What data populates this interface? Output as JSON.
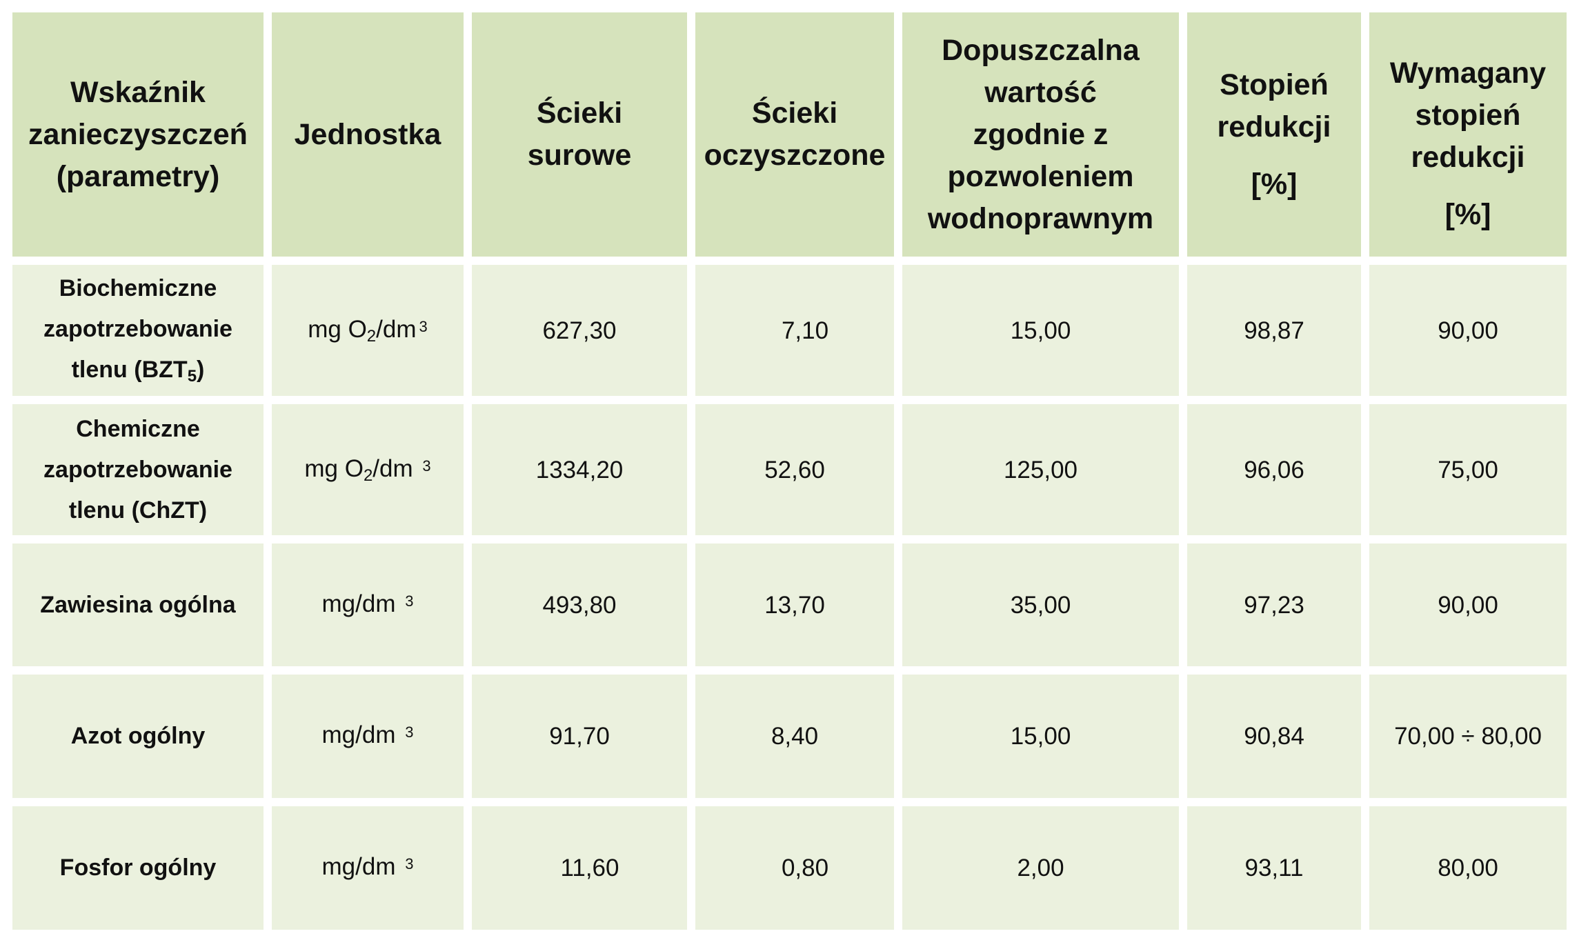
{
  "headers": {
    "parameter": [
      "Wskaźnik",
      "zanieczyszczeń",
      "(parametry)"
    ],
    "unit": [
      "Jednostka"
    ],
    "raw": [
      "Ścieki",
      "surowe"
    ],
    "treated": [
      "Ścieki",
      "oczyszczone"
    ],
    "permitted": [
      "Dopuszczalna",
      "wartość",
      "zgodnie z",
      "pozwoleniem",
      "wodnoprawnym"
    ],
    "reduction": [
      "Stopień",
      "redukcji"
    ],
    "reduction_pct": "[%]",
    "required": [
      "Wymagany",
      "stopień",
      "redukcji"
    ],
    "required_pct": "[%]"
  },
  "rows": [
    {
      "parameter_lines": [
        "Biochemiczne",
        "zapotrzebowanie",
        "tlenu (BZT"
      ],
      "parameter_sub": "5",
      "parameter_tail": ")",
      "unit_pre": "mg O",
      "unit_sub": "2",
      "unit_post": "/dm",
      "unit_sup": "3",
      "raw": "627,30",
      "treated": "7,10",
      "permitted": "15,00",
      "reduction": "98,87",
      "required": "90,00"
    },
    {
      "parameter_lines": [
        "Chemiczne",
        "zapotrzebowanie",
        "tlenu (ChZT)"
      ],
      "unit_pre": "mg O",
      "unit_sub": "2",
      "unit_post": "/dm ",
      "unit_sup": "3",
      "raw": "1334,20",
      "treated": "52,60",
      "permitted": "125,00",
      "reduction": "96,06",
      "required": "75,00"
    },
    {
      "parameter_lines": [
        "Zawiesina ogólna"
      ],
      "unit_post": "mg/dm ",
      "unit_sup": "3",
      "raw": "493,80",
      "treated": "13,70",
      "permitted": "35,00",
      "reduction": "97,23",
      "required": "90,00"
    },
    {
      "parameter_lines": [
        "Azot ogólny"
      ],
      "unit_post": "mg/dm ",
      "unit_sup": "3",
      "raw": "91,70",
      "treated": "8,40",
      "permitted": "15,00",
      "reduction": "90,84",
      "required": "70,00 ÷ 80,00"
    },
    {
      "parameter_lines": [
        "Fosfor ogólny"
      ],
      "unit_post": "mg/dm ",
      "unit_sup": "3",
      "raw": "11,60",
      "treated": "0,80",
      "permitted": "2,00",
      "reduction": "93,11",
      "required": "80,00"
    }
  ]
}
